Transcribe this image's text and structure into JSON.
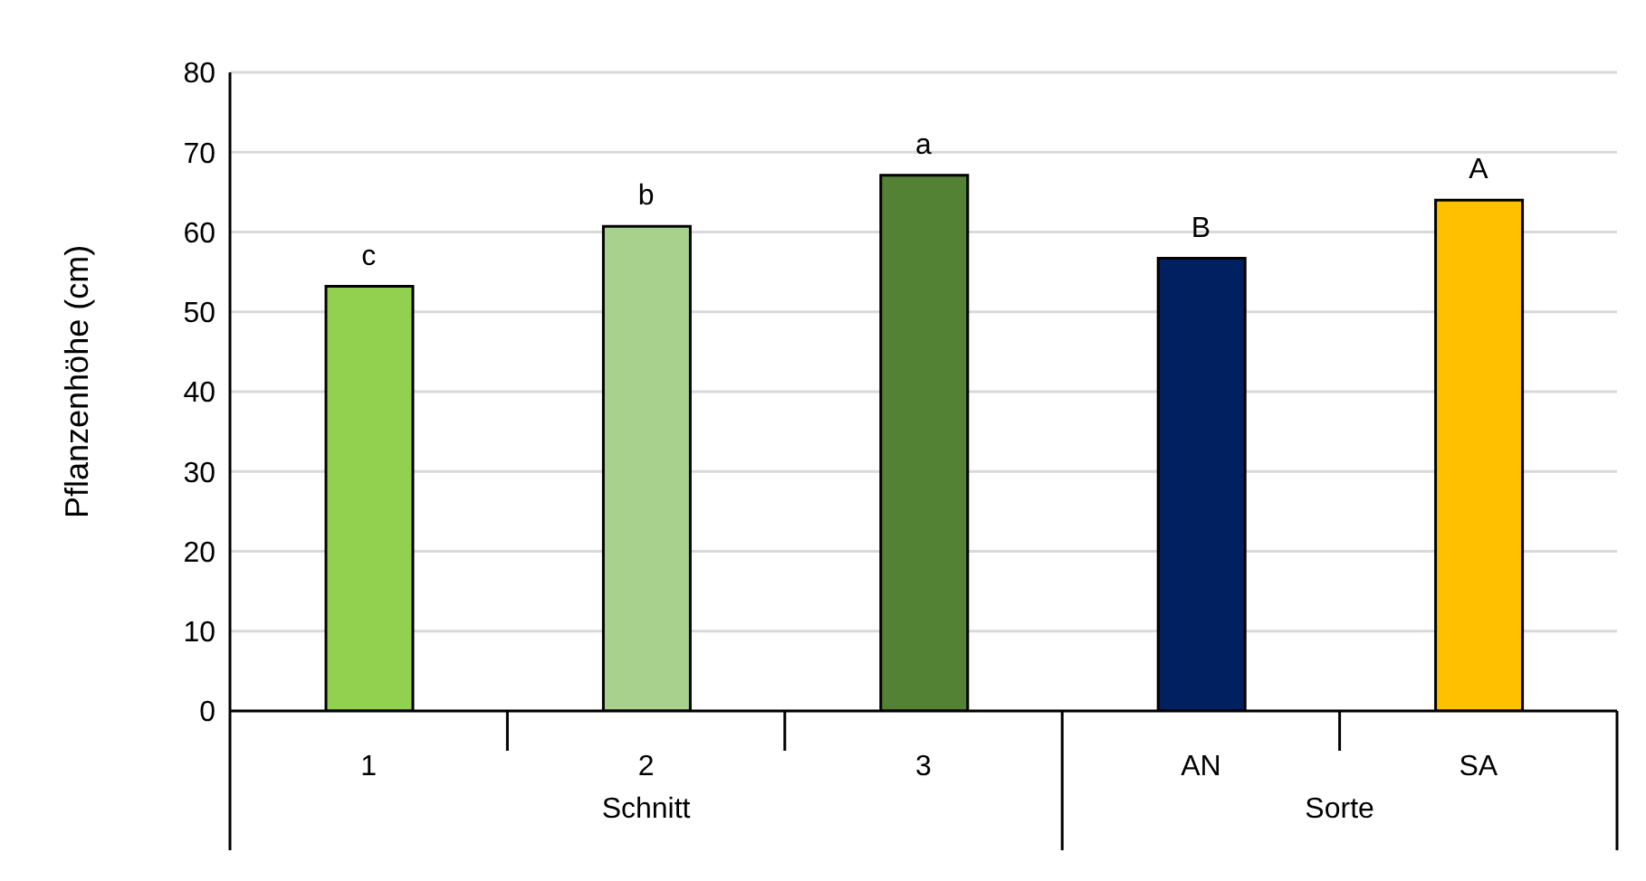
{
  "chart_data": {
    "type": "bar",
    "ylabel": "Pflanzenhöhe (cm)",
    "categories": [
      "1",
      "2",
      "3",
      "AN",
      "SA"
    ],
    "values": [
      53.2,
      60.7,
      67.1,
      56.7,
      64.0
    ],
    "colors": [
      "#92d050",
      "#a9d18e",
      "#548235",
      "#002060",
      "#ffc000"
    ],
    "ylim": [
      0,
      80
    ],
    "yticks": [
      0,
      10,
      20,
      30,
      40,
      50,
      60,
      70,
      80
    ],
    "grid": "y",
    "legend": false,
    "annotations": [
      {
        "text": "c",
        "x": "1",
        "y": 53.2
      },
      {
        "text": "b",
        "x": "2",
        "y": 60.7
      },
      {
        "text": "a",
        "x": "3",
        "y": 67.1
      },
      {
        "text": "B",
        "x": "AN",
        "y": 56.7
      },
      {
        "text": "A",
        "x": "SA",
        "y": 64.0
      },
      "Schnitt",
      "Sorte"
    ]
  }
}
